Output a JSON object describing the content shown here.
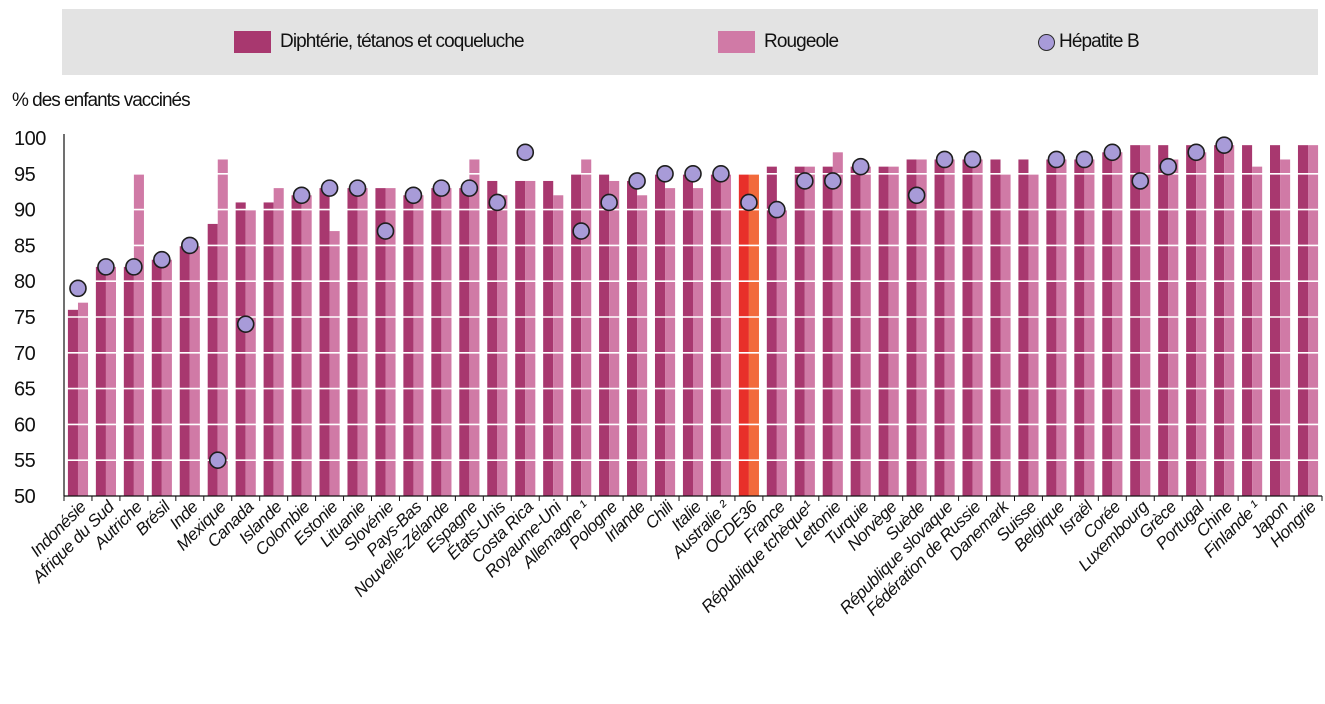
{
  "colors": {
    "dtc": "#a8386f",
    "measles": "#d07aa6",
    "hepb": "#a89bd8",
    "oecd_dtc": "#e8302a",
    "oecd_measles": "#f26a3c",
    "legend_bg": "#e3e3e3",
    "grid": "#ffffff",
    "axis": "#111111"
  },
  "legend": {
    "dtc_label": "Diphtérie, tétanos et coqueluche",
    "measles_label": "Rougeole",
    "hepb_label": "Hépatite B"
  },
  "chart_data": {
    "type": "bar",
    "ylabel": "% des enfants vaccinés",
    "ylim": [
      50,
      100
    ],
    "yticks": [
      50,
      55,
      60,
      65,
      70,
      75,
      80,
      85,
      90,
      95,
      100
    ],
    "grid": true,
    "legend_position": "top",
    "highlight_category": "OCDE36",
    "categories": [
      "Indonésie",
      "Afrique du Sud",
      "Autriche",
      "Brésil",
      "Inde",
      "Mexique",
      "Canada",
      "Islande",
      "Colombie",
      "Estonie",
      "Lituanie",
      "Slovénie",
      "Pays-Bas",
      "Nouvelle-Zélande",
      "Espagne",
      "États-Unis",
      "Costa Rica",
      "Royaume-Uni",
      "Allemagne ¹",
      "Pologne",
      "Irlande",
      "Chili",
      "Italie",
      "Australie ²",
      "OCDE36",
      "France",
      "République tchèque¹",
      "Lettonie",
      "Turquie",
      "Norvège",
      "Suède",
      "République slovaque",
      "Fédération de Russie",
      "Danemark",
      "Suisse",
      "Belgique",
      "Israël",
      "Corée",
      "Luxembourg",
      "Grèce",
      "Portugal",
      "Chine",
      "Finlande ¹",
      "Japon",
      "Hongrie"
    ],
    "series": [
      {
        "name": "Diphtérie, tétanos et coqueluche",
        "kind": "bar",
        "values": [
          76,
          82,
          82,
          83,
          85,
          88,
          91,
          91,
          92,
          93,
          93,
          93,
          92,
          93,
          93,
          94,
          94,
          94,
          95,
          95,
          94,
          95,
          95,
          95,
          95,
          96,
          96,
          96,
          96,
          96,
          97,
          97,
          97,
          97,
          97,
          97,
          97,
          98,
          99,
          99,
          99,
          99,
          99,
          99,
          99
        ]
      },
      {
        "name": "Rougeole",
        "kind": "bar",
        "values": [
          77,
          82,
          95,
          83,
          85,
          97,
          90,
          93,
          92,
          87,
          93,
          93,
          92,
          93,
          97,
          92,
          94,
          92,
          97,
          94,
          92,
          93,
          93,
          95,
          95,
          90,
          96,
          98,
          96,
          96,
          97,
          97,
          97,
          95,
          95,
          97,
          97,
          98,
          99,
          97,
          98,
          99,
          96,
          97,
          99
        ]
      },
      {
        "name": "Hépatite B",
        "kind": "marker",
        "values": [
          79,
          82,
          82,
          83,
          85,
          55,
          74,
          null,
          92,
          93,
          93,
          87,
          92,
          93,
          93,
          91,
          98,
          null,
          87,
          91,
          94,
          95,
          95,
          95,
          91,
          90,
          94,
          94,
          96,
          null,
          92,
          97,
          97,
          null,
          null,
          97,
          97,
          98,
          94,
          96,
          98,
          99,
          null,
          null,
          null
        ]
      }
    ]
  }
}
